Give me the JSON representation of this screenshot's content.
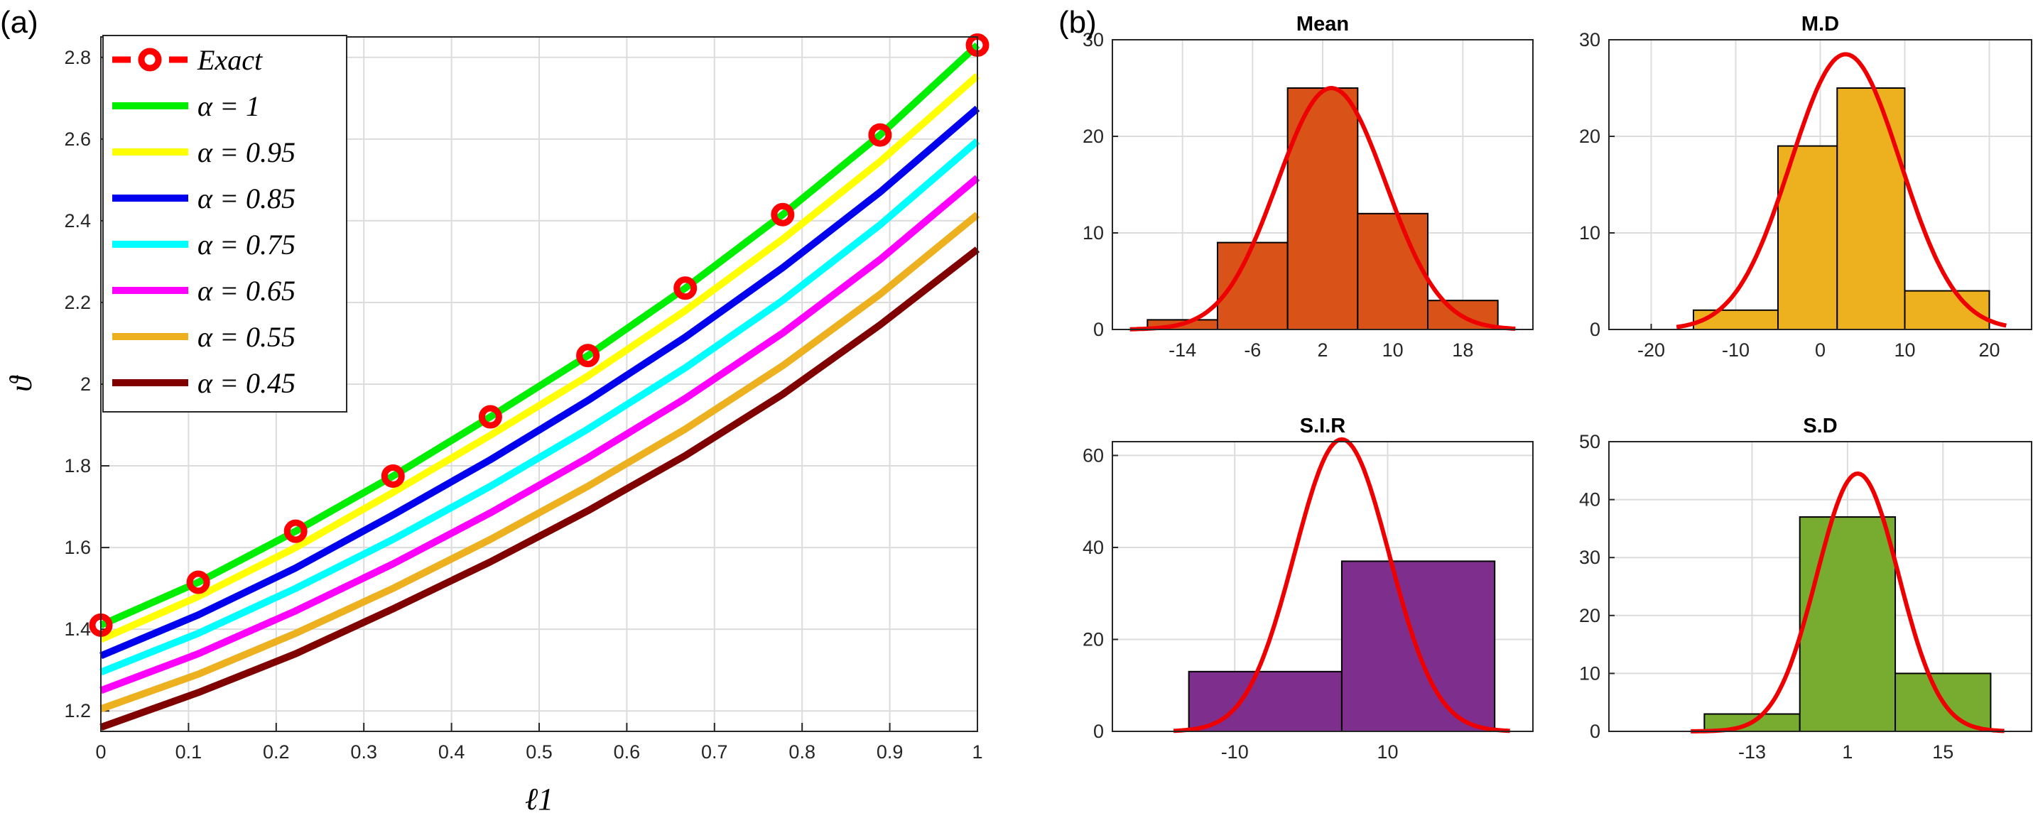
{
  "panel_a": {
    "label": "(a)"
  },
  "panel_b": {
    "label": "(b)"
  },
  "colors": {
    "exact": "#ff0000",
    "alpha_1": "#00ee00",
    "alpha_095": "#ffff00",
    "alpha_085": "#0000ee",
    "alpha_075": "#00ffff",
    "alpha_065": "#ff00ff",
    "alpha_055": "#edb120",
    "alpha_045": "#800000",
    "fit_curve": "#ee0000",
    "hist_mean": "#d95319",
    "hist_md": "#edb120",
    "hist_sir": "#7e2f8e",
    "hist_sd": "#77ac30"
  },
  "chart_data": [
    {
      "id": "line-chart",
      "type": "line",
      "title": "",
      "xlabel": "ℓ1",
      "ylabel": "ϑ",
      "xlim": [
        0,
        1
      ],
      "ylim": [
        1.15,
        2.85
      ],
      "xticks": [
        "0",
        "0.1",
        "0.2",
        "0.3",
        "0.4",
        "0.5",
        "0.6",
        "0.7",
        "0.8",
        "0.9",
        "1"
      ],
      "yticks": [
        "1.2",
        "1.4",
        "1.6",
        "1.8",
        "2",
        "2.2",
        "2.4",
        "2.6",
        "2.8"
      ],
      "grid": true,
      "legend_position": "top-left",
      "legend": [
        "Exact",
        "α = 1",
        "α = 0.95",
        "α = 0.85",
        "α = 0.75",
        "α = 0.65",
        "α = 0.55",
        "α = 0.45"
      ],
      "x": [
        0,
        0.1111,
        0.2222,
        0.3333,
        0.4444,
        0.5556,
        0.6667,
        0.7778,
        0.8889,
        1
      ],
      "series": [
        {
          "name": "Exact",
          "marker": "circle",
          "values": [
            1.41,
            1.515,
            1.64,
            1.775,
            1.92,
            2.07,
            2.235,
            2.415,
            2.61,
            2.83
          ]
        },
        {
          "name": "α = 1",
          "values": [
            1.41,
            1.515,
            1.64,
            1.775,
            1.92,
            2.07,
            2.235,
            2.415,
            2.61,
            2.83
          ]
        },
        {
          "name": "α = 0.95",
          "values": [
            1.375,
            1.48,
            1.6,
            1.735,
            1.875,
            2.02,
            2.18,
            2.355,
            2.545,
            2.755
          ]
        },
        {
          "name": "α = 0.85",
          "values": [
            1.335,
            1.435,
            1.55,
            1.68,
            1.815,
            1.96,
            2.115,
            2.285,
            2.47,
            2.675
          ]
        },
        {
          "name": "α = 0.75",
          "values": [
            1.295,
            1.39,
            1.5,
            1.62,
            1.75,
            1.89,
            2.04,
            2.205,
            2.39,
            2.595
          ]
        },
        {
          "name": "α = 0.65",
          "values": [
            1.25,
            1.34,
            1.445,
            1.56,
            1.685,
            1.82,
            1.965,
            2.125,
            2.305,
            2.505
          ]
        },
        {
          "name": "α = 0.55",
          "values": [
            1.205,
            1.29,
            1.39,
            1.5,
            1.62,
            1.75,
            1.89,
            2.045,
            2.22,
            2.415
          ]
        },
        {
          "name": "α = 0.45",
          "values": [
            1.16,
            1.245,
            1.34,
            1.45,
            1.565,
            1.69,
            1.825,
            1.975,
            2.145,
            2.33
          ]
        }
      ]
    },
    {
      "id": "hist-mean",
      "type": "bar",
      "title": "Mean",
      "xlim": [
        -22,
        26
      ],
      "ylim": [
        0,
        30
      ],
      "xticks": [
        "-14",
        "-6",
        "2",
        "10",
        "18"
      ],
      "xtick_values": [
        -14,
        -6,
        2,
        10,
        18
      ],
      "yticks": [
        "0",
        "10",
        "20",
        "30"
      ],
      "bins": [
        [
          -18,
          -10
        ],
        [
          -10,
          -2
        ],
        [
          -2,
          6
        ],
        [
          6,
          14
        ],
        [
          14,
          22
        ]
      ],
      "values": [
        1,
        9,
        25,
        12,
        3
      ],
      "fit": {
        "mean": 3,
        "sd": 6.2,
        "peak": 25
      }
    },
    {
      "id": "hist-md",
      "type": "bar",
      "title": "M.D",
      "xlim": [
        -25,
        25
      ],
      "ylim": [
        0,
        30
      ],
      "xticks": [
        "-20",
        "-10",
        "0",
        "10",
        "20"
      ],
      "xtick_values": [
        -20,
        -10,
        0,
        10,
        20
      ],
      "yticks": [
        "0",
        "10",
        "20",
        "30"
      ],
      "bins": [
        [
          -15,
          -5
        ],
        [
          -5,
          2
        ],
        [
          2,
          10
        ],
        [
          10,
          20
        ]
      ],
      "values": [
        2,
        19,
        25,
        4
      ],
      "fit": {
        "mean": 3,
        "sd": 6.5,
        "peak": 28.5
      }
    },
    {
      "id": "hist-sir",
      "type": "bar",
      "title": "S.I.R",
      "xlim": [
        -26,
        29
      ],
      "ylim": [
        0,
        63
      ],
      "xticks": [
        "-10",
        "10"
      ],
      "xtick_values": [
        -10,
        10
      ],
      "yticks": [
        "0",
        "20",
        "40",
        "60"
      ],
      "bins": [
        [
          -16,
          4
        ],
        [
          4,
          24
        ]
      ],
      "values": [
        13,
        37
      ],
      "fit": {
        "mean": 4,
        "sd": 6.2,
        "peak": 63.5
      }
    },
    {
      "id": "hist-sd",
      "type": "bar",
      "title": "S.D",
      "xlim": [
        -34,
        28
      ],
      "ylim": [
        0,
        50
      ],
      "xticks": [
        "-13",
        "1",
        "15"
      ],
      "xtick_values": [
        -13,
        1,
        15
      ],
      "yticks": [
        "0",
        "10",
        "20",
        "30",
        "40",
        "50"
      ],
      "bins": [
        [
          -20,
          -6
        ],
        [
          -6,
          8
        ],
        [
          8,
          22
        ]
      ],
      "values": [
        3,
        37,
        10
      ],
      "fit": {
        "mean": 2.5,
        "sd": 6,
        "peak": 44.5
      }
    }
  ]
}
